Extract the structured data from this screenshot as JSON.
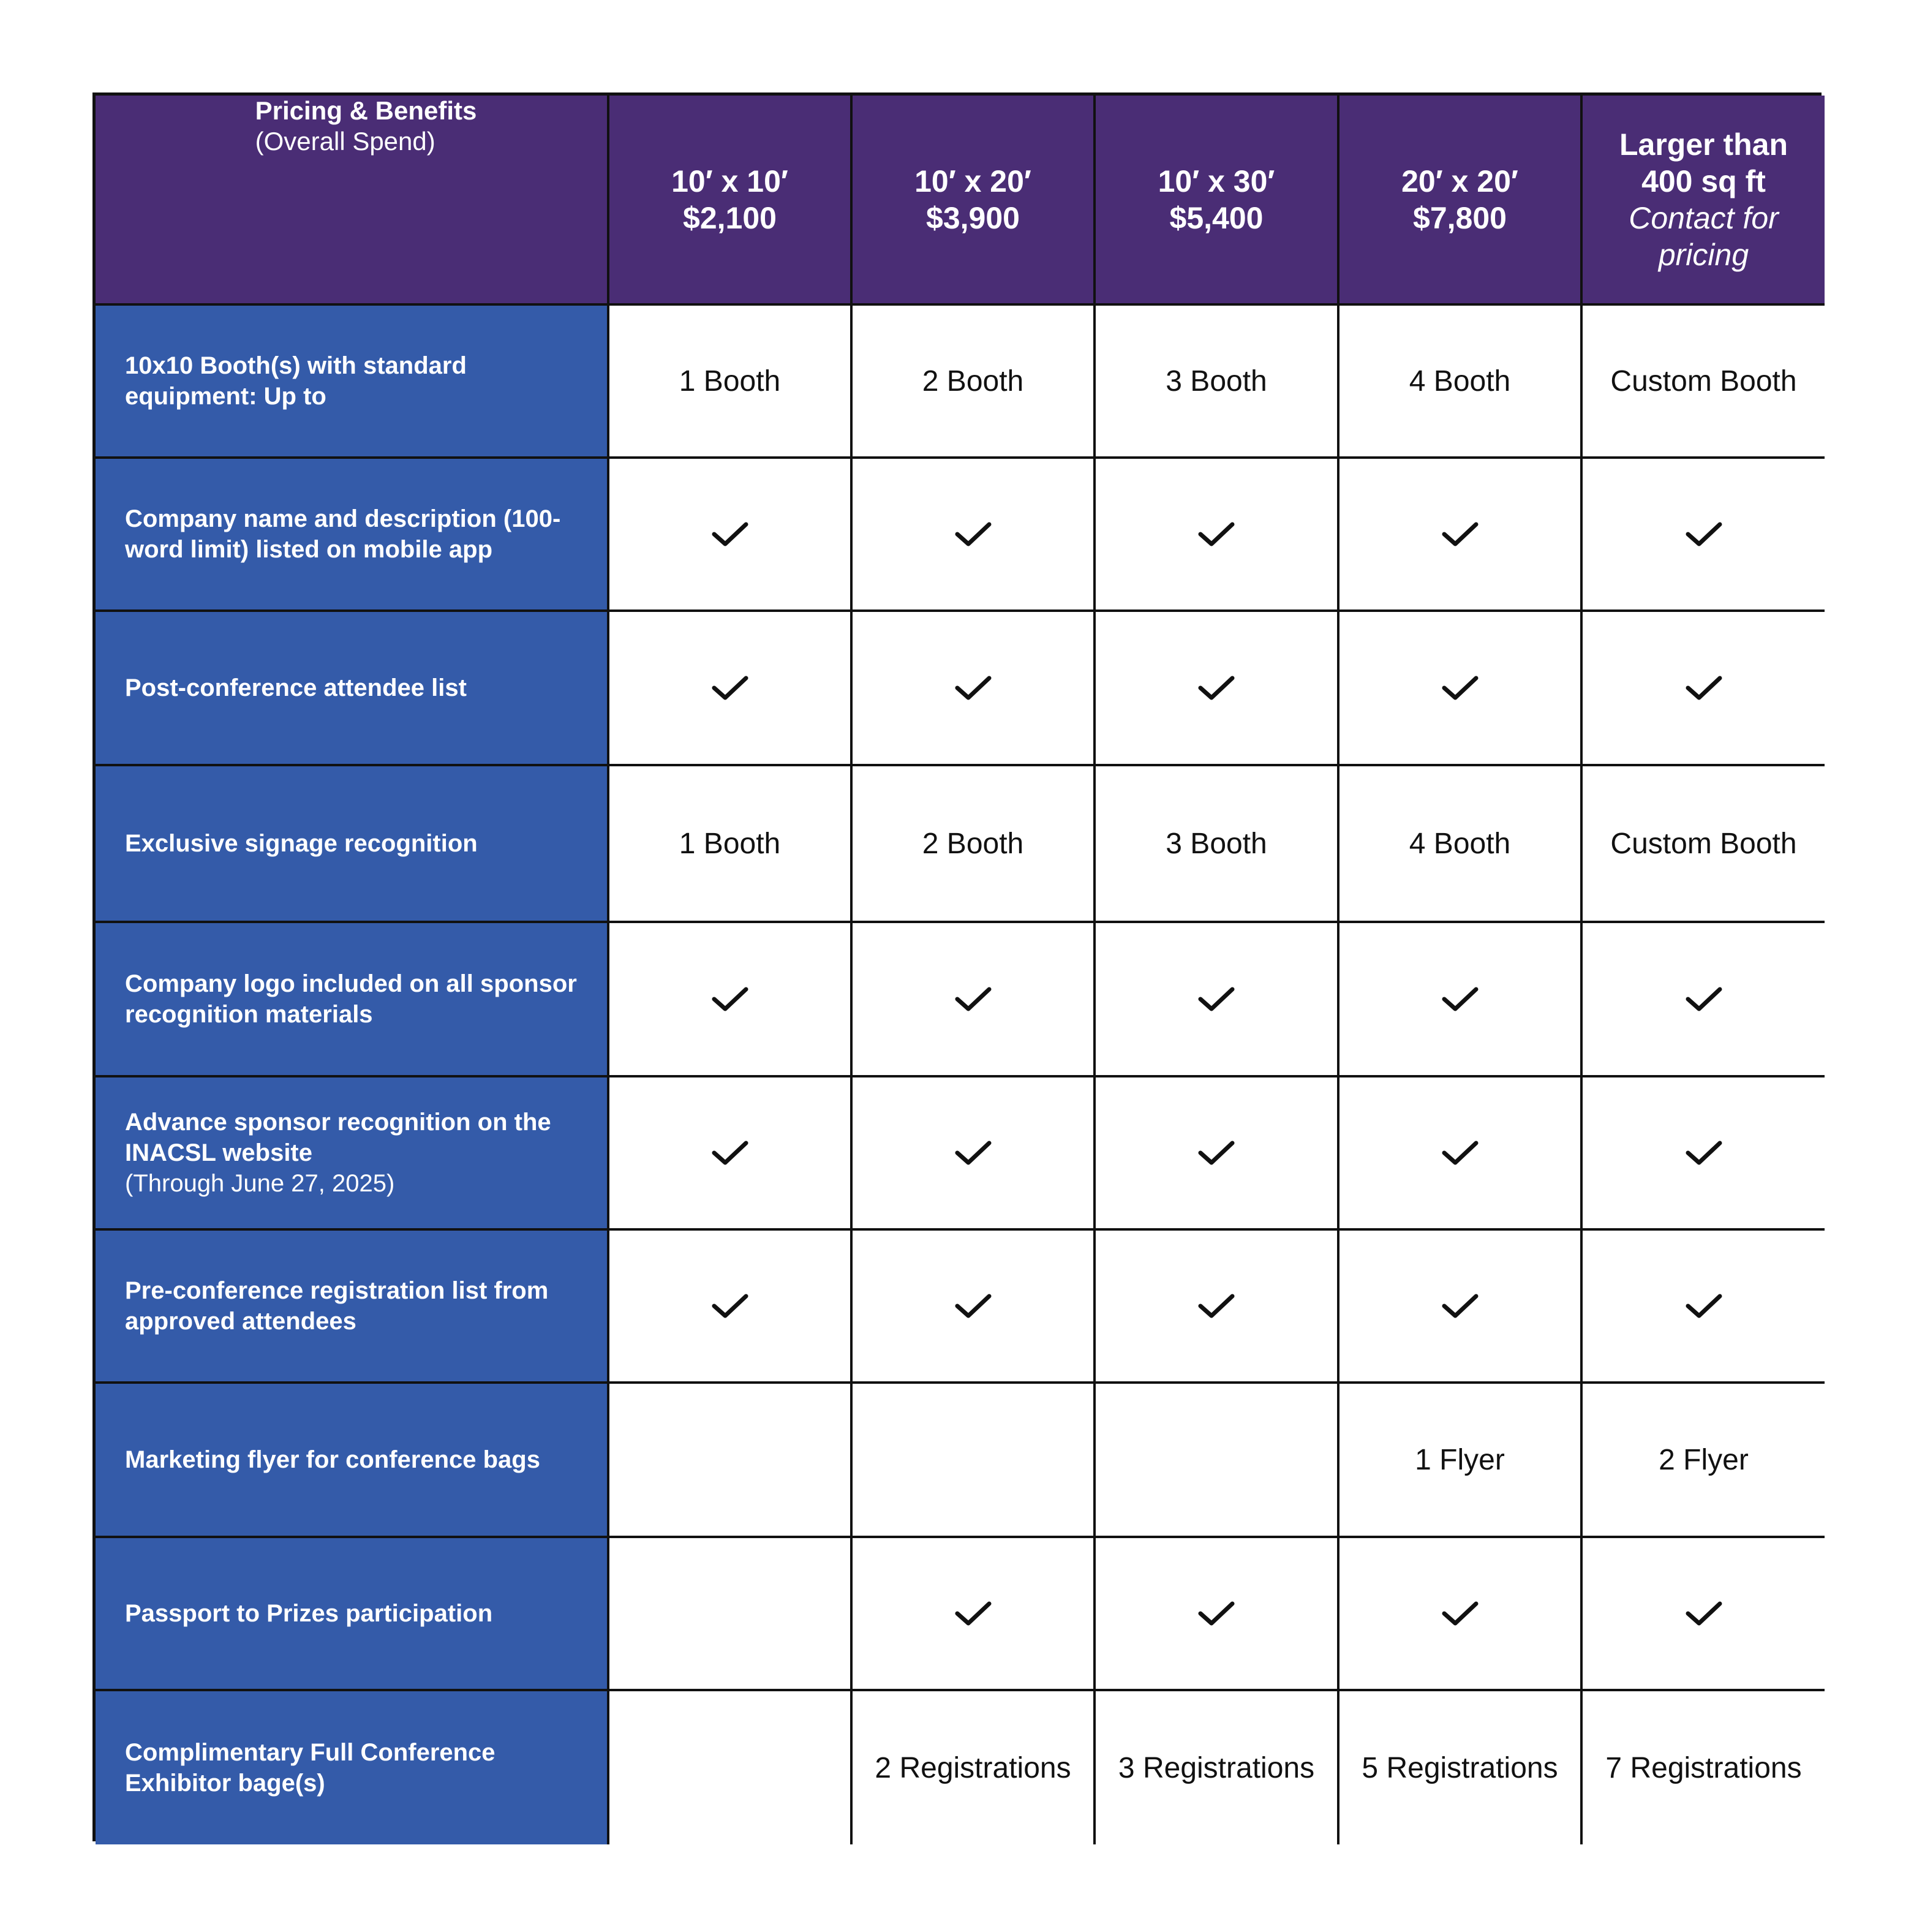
{
  "colors": {
    "header_bg": "#4a2d75",
    "label_bg": "#345ba9",
    "border": "#111111"
  },
  "header": {
    "title": "Pricing & Benefits",
    "subtitle": "(Overall Spend)",
    "columns": [
      {
        "size": "10′ x 10′",
        "price": "$2,100"
      },
      {
        "size": "10′ x 20′",
        "price": "$3,900"
      },
      {
        "size": "10′ x 30′",
        "price": "$5,400"
      },
      {
        "size": "20′ x 20′",
        "price": "$7,800"
      },
      {
        "size": "Larger than 400 sq ft",
        "price": "Contact for pricing"
      }
    ]
  },
  "rows": [
    {
      "label": "10x10 Booth(s) with standard equipment: Up to",
      "cells": [
        "1 Booth",
        "2 Booth",
        "3 Booth",
        "4 Booth",
        "Custom Booth"
      ]
    },
    {
      "label": "Company name and description (100-word limit) listed on mobile app",
      "cells": [
        "check",
        "check",
        "check",
        "check",
        "check"
      ]
    },
    {
      "label": "Post-conference attendee list",
      "cells": [
        "check",
        "check",
        "check",
        "check",
        "check"
      ]
    },
    {
      "label": "Exclusive signage recognition",
      "cells": [
        "1 Booth",
        "2 Booth",
        "3 Booth",
        "4 Booth",
        "Custom Booth"
      ]
    },
    {
      "label": "Company logo included on all sponsor recognition materials",
      "cells": [
        "check",
        "check",
        "check",
        "check",
        "check"
      ]
    },
    {
      "label": "Advance sponsor recognition on the INACSL website",
      "label_sub": "(Through June 27, 2025)",
      "cells": [
        "check",
        "check",
        "check",
        "check",
        "check"
      ]
    },
    {
      "label": "Pre-conference registration list from approved attendees",
      "cells": [
        "check",
        "check",
        "check",
        "check",
        "check"
      ]
    },
    {
      "label": "Marketing flyer for conference bags",
      "cells": [
        "",
        "",
        "",
        "1 Flyer",
        "2 Flyer"
      ]
    },
    {
      "label": "Passport to Prizes participation",
      "cells": [
        "",
        "check",
        "check",
        "check",
        "check"
      ]
    },
    {
      "label": "Complimentary Full Conference Exhibitor bage(s)",
      "cells": [
        "",
        "2 Registrations",
        "3 Registrations",
        "5 Registrations",
        "7 Registrations"
      ]
    }
  ]
}
